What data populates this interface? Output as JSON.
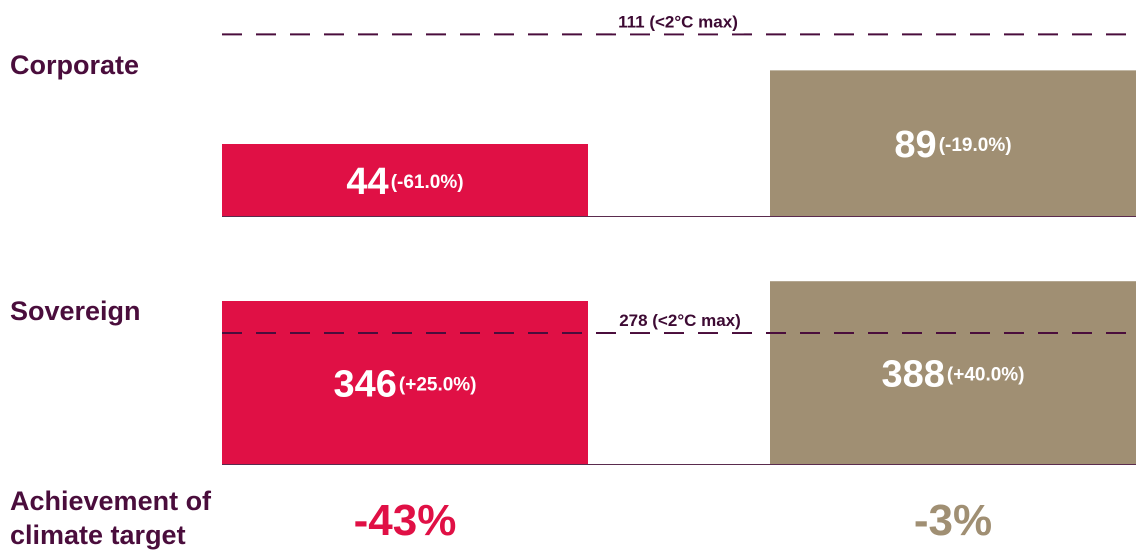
{
  "chart_data": {
    "type": "bar",
    "categories": [
      "Corporate",
      "Sovereign"
    ],
    "series": [
      {
        "color": "#e01045",
        "values": [
          44,
          346
        ],
        "change_labels": [
          "(-61.0%)",
          "(+25.0%)"
        ],
        "achievement": "-43%"
      },
      {
        "color": "#a08f73",
        "values": [
          89,
          388
        ],
        "change_labels": [
          "(-19.0%)",
          "(+40.0%)"
        ],
        "achievement": "-3%"
      }
    ],
    "limits": [
      {
        "value": 111,
        "label": "111 (<2°C max)"
      },
      {
        "value": 278,
        "label": "278 (<2°C max)"
      }
    ],
    "achievement_label_lines": [
      "Achievement of",
      "climate target"
    ],
    "axis_line_color": "#5a2b4e",
    "limit_line_color": "#4a0d3c",
    "label_color": "#4a0d3c"
  }
}
